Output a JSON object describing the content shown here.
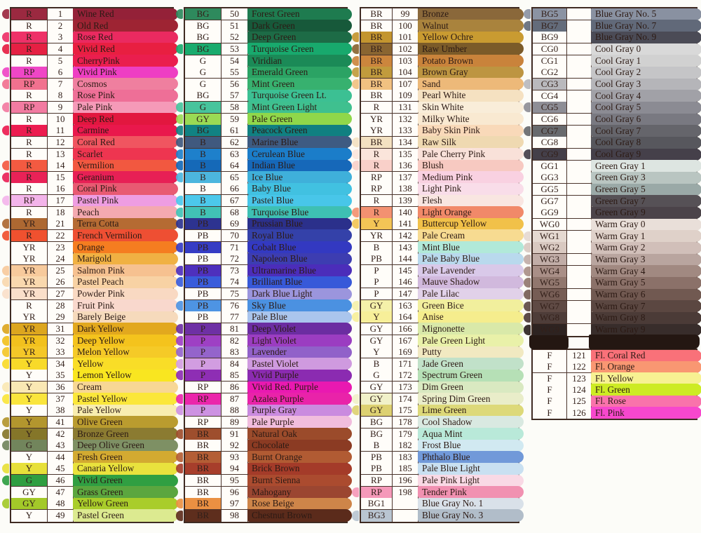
{
  "colors": {
    "page_bg": "#fcfcf8",
    "table_bg": "#fffdf9",
    "grid_border": "#4a342c",
    "outer_border": "#3f2b23",
    "text": "#2c1a14",
    "smudge": "#241712"
  },
  "row_format": [
    "code",
    "number",
    "name",
    "swatch_color",
    "code_cell_paint"
  ],
  "tables": [
    {
      "id": "t1",
      "rows": [
        [
          "R",
          "1",
          "Wine Red",
          "#942138",
          "#9b2940"
        ],
        [
          "R",
          "2",
          "Old Red",
          "#9e2433",
          null
        ],
        [
          "R",
          "3",
          "Rose Red",
          "#ea2a60",
          "#ee3168"
        ],
        [
          "R",
          "4",
          "Vivid Red",
          "#e81f41",
          "#e52043"
        ],
        [
          "R",
          "5",
          "CherryPink",
          "#ea1e4e",
          null
        ],
        [
          "RP",
          "6",
          "Vivid Pink",
          "#ee3ec3",
          "#ef46c6"
        ],
        [
          "RP",
          "7",
          "Cosmos",
          "#ef7f9f",
          "#f1718f"
        ],
        [
          "R",
          "8",
          "Rose Pink",
          "#ee6f97",
          null
        ],
        [
          "RP",
          "9",
          "Pale Pink",
          "#f59ab8",
          "#f27ba1"
        ],
        [
          "R",
          "10",
          "Deep Red",
          "#e2173f",
          null
        ],
        [
          "R",
          "11",
          "Carmine",
          "#e9184c",
          "#ec1c50"
        ],
        [
          "R",
          "12",
          "Coral Red",
          "#f05560",
          null
        ],
        [
          "R",
          "13",
          "Scarlet",
          "#ee3550",
          null
        ],
        [
          "R",
          "14",
          "Vermilion",
          "#f25840",
          "#f35a41"
        ],
        [
          "R",
          "15",
          "Geranium",
          "#e72055",
          "#e92257"
        ],
        [
          "R",
          "16",
          "Coral Pink",
          "#e85a72",
          null
        ],
        [
          "RP",
          "17",
          "Pastel Pink",
          "#ee9de2",
          "#f3b4ea"
        ],
        [
          "R",
          "18",
          "Peach",
          "#f4a9b0",
          null
        ],
        [
          "YR",
          "21",
          "Terra Cotta",
          "#b56b33",
          "#ad6832"
        ],
        [
          "R",
          "22",
          "French Vermilion",
          "#ee4f33",
          "#f0512f"
        ],
        [
          "YR",
          "23",
          "Orange",
          "#f57d20",
          null
        ],
        [
          "YR",
          "24",
          "Marigold",
          "#f0b143",
          null
        ],
        [
          "YR",
          "25",
          "Salmon Pink",
          "#f6c190",
          "#f7ca9c"
        ],
        [
          "YR",
          "26",
          "Pastel Peach",
          "#f8d2a4",
          "#f9d8ae"
        ],
        [
          "YR",
          "27",
          "Powder Pink",
          "#f9d9c2",
          "#fadfca"
        ],
        [
          "R",
          "28",
          "Fruit Pink",
          "#f9d8cd",
          null
        ],
        [
          "YR",
          "29",
          "Barely Beige",
          "#f6dabc",
          null
        ],
        [
          "YR",
          "31",
          "Dark Yellow",
          "#e2a81e",
          "#dca61f"
        ],
        [
          "YR",
          "32",
          "Deep Yellow",
          "#f4c31d",
          "#f2c11e"
        ],
        [
          "YR",
          "33",
          "Melon Yellow",
          "#f5ca27",
          "#f4c728"
        ],
        [
          "Y",
          "34",
          "Yellow",
          "#f9dd27",
          "#f8da29"
        ],
        [
          "Y",
          "35",
          "Lemon Yellow",
          "#f9e620",
          null
        ],
        [
          "Y",
          "36",
          "Cream",
          "#f7d795",
          "#fae8b4"
        ],
        [
          "Y",
          "37",
          "Pastel Yellow",
          "#fbe73a",
          "#fae53c"
        ],
        [
          "Y",
          "38",
          "Pale Yellow",
          "#f8edb0",
          null
        ],
        [
          "Y",
          "41",
          "Olive Green",
          "#ba9c2f",
          "#b3962e"
        ],
        [
          "Y",
          "42",
          "Bronze Green",
          "#8b7b31",
          "#857629"
        ],
        [
          "G",
          "43",
          "Deep Olive Green",
          "#7e9064",
          "#72855c"
        ],
        [
          "Y",
          "44",
          "Fresh Green",
          "#d3aa31",
          null
        ],
        [
          "Y",
          "45",
          "Canaria Yellow",
          "#e9e23d",
          "#e7e03a"
        ],
        [
          "G",
          "46",
          "Vivid Green",
          "#309f42",
          "#2f9e41"
        ],
        [
          "GY",
          "47",
          "Grass Green",
          "#5ba63f",
          null
        ],
        [
          "GY",
          "48",
          "Yellow Green",
          "#a9cd2a",
          "#a3c929"
        ],
        [
          "Y",
          "49",
          "Pastel Green",
          "#dcea90",
          null
        ]
      ]
    },
    {
      "id": "t2",
      "rows": [
        [
          "BG",
          "50",
          "Forest Green",
          "#1e7b4f",
          "#2e8a5d"
        ],
        [
          "BG",
          "51",
          "Dark Green",
          "#17593a",
          null
        ],
        [
          "BG",
          "52",
          "Deep Green",
          "#1d6b46",
          null
        ],
        [
          "BG",
          "53",
          "Turquoise Green",
          "#18a96d",
          "#19ab6e"
        ],
        [
          "G",
          "54",
          "Viridian",
          "#1b8a57",
          null
        ],
        [
          "G",
          "55",
          "Emerald Green",
          "#2ba364",
          null
        ],
        [
          "G",
          "56",
          "Mint Green",
          "#37b16f",
          null
        ],
        [
          "BG",
          "57",
          "Turquoise Green Lt.",
          "#3cc093",
          null
        ],
        [
          "G",
          "58",
          "Mint Green Light",
          "#3fc08f",
          "#47c49c"
        ],
        [
          "GY",
          "59",
          "Pale Green",
          "#90d74a",
          "#9ada54"
        ],
        [
          "BG",
          "61",
          "Peacock Green",
          "#108081",
          "#118283"
        ],
        [
          "B",
          "62",
          "Marine Blue",
          "#3e5b82",
          "#40597e"
        ],
        [
          "B",
          "63",
          "Cerulean Blue",
          "#1b7dc9",
          "#1e80cb"
        ],
        [
          "B",
          "64",
          "Indian Blue",
          "#1668b9",
          "#1569b8"
        ],
        [
          "B",
          "65",
          "Ice Blue",
          "#3fb0da",
          "#4cb6de"
        ],
        [
          "B",
          "66",
          "Baby Blue",
          "#41c1e1",
          null
        ],
        [
          "B",
          "67",
          "Pastel Blue",
          "#48c6e9",
          "#4cc8eb"
        ],
        [
          "B",
          "68",
          "Turquoise Blue",
          "#3ec0b3",
          "#41c2b5"
        ],
        [
          "PB",
          "69",
          "Prussian Blue",
          "#2b308b",
          "#2d3390"
        ],
        [
          "PB",
          "70",
          "Royal Blue",
          "#3441a9",
          null
        ],
        [
          "PB",
          "71",
          "Cobalt Blue",
          "#3339c1",
          "#363cc4"
        ],
        [
          "PB",
          "72",
          "Napoleon Blue",
          "#3d3db1",
          null
        ],
        [
          "PB",
          "73",
          "Ultramarine Blue",
          "#4b2dba",
          "#4e30bd"
        ],
        [
          "PB",
          "74",
          "Brilliant Blue",
          "#3759d9",
          "#3a5cdb"
        ],
        [
          "PB",
          "75",
          "Dark Blue Light",
          "#9b95dd",
          null
        ],
        [
          "PB",
          "76",
          "Sky Blue",
          "#4b91e1",
          "#4e94e3"
        ],
        [
          "PB",
          "77",
          "Pale Blue",
          "#aac5ed",
          null
        ],
        [
          "P",
          "81",
          "Deep Violet",
          "#6b2da1",
          "#6e30a4"
        ],
        [
          "P",
          "82",
          "Light Violet",
          "#9b3dc1",
          "#9e40c4"
        ],
        [
          "P",
          "83",
          "Lavender",
          "#9161c9",
          "#9464cb"
        ],
        [
          "P",
          "84",
          "Pastel Violet",
          "#cf9adf",
          "#d29de1"
        ],
        [
          "P",
          "85",
          "Vivid Purple",
          "#8b2bb1",
          "#8e2eb4"
        ],
        [
          "RP",
          "86",
          "Vivid Red. Purple",
          "#e919b1",
          null
        ],
        [
          "RP",
          "87",
          "Azalea Purple",
          "#e923a9",
          "#eb26ab"
        ],
        [
          "P",
          "88",
          "Purple Gray",
          "#ca8bdf",
          "#cd92e2"
        ],
        [
          "RP",
          "89",
          "Pale Purple",
          "#f1bddd",
          null
        ],
        [
          "BR",
          "91",
          "Natural Oak",
          "#9b4b2b",
          "#9e4e2d"
        ],
        [
          "BR",
          "92",
          "Chocolate",
          "#8b3b23",
          null
        ],
        [
          "BR",
          "93",
          "Burnt Orange",
          "#b15b33",
          "#b45e35"
        ],
        [
          "BR",
          "94",
          "Brick Brown",
          "#a43b29",
          "#a73e2b"
        ],
        [
          "BR",
          "95",
          "Burnt Sienna",
          "#ab4b2f",
          null
        ],
        [
          "BR",
          "96",
          "Mahogany",
          "#9b4631",
          null
        ],
        [
          "BR",
          "97",
          "Rose Beige",
          "#ce8549",
          "#ea9042"
        ],
        [
          "BR",
          "98",
          "Chestnut Brown",
          "#5b2b1b",
          "#5e2e1d"
        ]
      ]
    },
    {
      "id": "t3",
      "rows": [
        [
          "BR",
          "99",
          "Bronze",
          "#8a683a",
          null
        ],
        [
          "BR",
          "100",
          "Walnut",
          "#a9833d",
          null
        ],
        [
          "BR",
          "101",
          "Yellow Ochre",
          "#c99b31",
          "#c3952f"
        ],
        [
          "BR",
          "102",
          "Raw Umber",
          "#7b5b29",
          "#8a6531"
        ],
        [
          "BR",
          "103",
          "Potato Brown",
          "#c9833b",
          "#cc863d"
        ],
        [
          "BR",
          "104",
          "Brown Gray",
          "#bd9541",
          "#c19b3d"
        ],
        [
          "BR",
          "107",
          "Sand",
          "#edb979",
          "#f1c181"
        ],
        [
          "BR",
          "109",
          "Pearl White",
          "#f5e1c1",
          null
        ],
        [
          "R",
          "131",
          "Skin White",
          "#f9edd9",
          null
        ],
        [
          "YR",
          "132",
          "Milky White",
          "#f9e9d1",
          null
        ],
        [
          "YR",
          "133",
          "Baby Skin Pink",
          "#f9d9b9",
          null
        ],
        [
          "BR",
          "134",
          "Raw Silk",
          "#efd9b1",
          "#f3e1c1"
        ],
        [
          "R",
          "135",
          "Pale Cherry Pink",
          "#f9e1d9",
          "#fbe5db"
        ],
        [
          "R",
          "136",
          "Blush",
          "#f7c9c1",
          "#f9d0c9"
        ],
        [
          "RP",
          "137",
          "Medium Pink",
          "#f9d1e1",
          null
        ],
        [
          "RP",
          "138",
          "Light Pink",
          "#f9dde9",
          null
        ],
        [
          "R",
          "139",
          "Flesh",
          "#f9e6e1",
          null
        ],
        [
          "R",
          "140",
          "Light Orange",
          "#f18969",
          "#f39171"
        ],
        [
          "Y",
          "141",
          "Buttercup Yellow",
          "#f1c149",
          "#f3c556"
        ],
        [
          "YR",
          "142",
          "Pale Cream",
          "#f7db91",
          null
        ],
        [
          "B",
          "143",
          "Mint Blue",
          "#b1e9d9",
          null
        ],
        [
          "PB",
          "144",
          "Pale Baby Blue",
          "#b9d9ed",
          null
        ],
        [
          "P",
          "145",
          "Pale Lavender",
          "#d9c9e9",
          null
        ],
        [
          "P",
          "146",
          "Mauve Shadow",
          "#d1b9dd",
          null
        ],
        [
          "P",
          "147",
          "Pale Lilac",
          "#e1d1e9",
          null
        ],
        [
          "GY",
          "163",
          "Green Bice",
          "#f1ef9d",
          "#f5f1a9"
        ],
        [
          "Y",
          "164",
          "Anise",
          "#f5ed8d",
          "#f7ef99"
        ],
        [
          "GY",
          "166",
          "Mignonette",
          "#d9e9a9",
          null
        ],
        [
          "GY",
          "167",
          "Pale Green Light",
          "#e9f1a9",
          null
        ],
        [
          "Y",
          "169",
          "Putty",
          "#f1e9c1",
          null
        ],
        [
          "B",
          "171",
          "Jade Green",
          "#c1e1c9",
          null
        ],
        [
          "G",
          "172",
          "Spectrum Green",
          "#b6e0b6",
          null
        ],
        [
          "GY",
          "173",
          "Dim Green",
          "#d9e9c1",
          null
        ],
        [
          "GY",
          "174",
          "Spring Dim Green",
          "#e9edc9",
          "#f1f1c9"
        ],
        [
          "GY",
          "175",
          "Lime Green",
          "#ddd979",
          "#ddd171"
        ],
        [
          "BG",
          "178",
          "Cool Shadow",
          "#d9e9e1",
          null
        ],
        [
          "BG",
          "179",
          "Aqua Mint",
          "#b9e9d9",
          null
        ],
        [
          "B",
          "182",
          "Frost Blue",
          "#d1e9f1",
          null
        ],
        [
          "PB",
          "183",
          "Phthalo Blue",
          "#7199d9",
          null
        ],
        [
          "PB",
          "185",
          "Pale Blue Light",
          "#c9e0f1",
          null
        ],
        [
          "RP",
          "196",
          "Pale Pink Light",
          "#f9d9e5",
          null
        ],
        [
          "RP",
          "198",
          "Tender Pink",
          "#f191b1",
          "#f599b9"
        ],
        [
          "BG1",
          "",
          "Blue Gray No. 1",
          "#d9e1e9",
          null
        ],
        [
          "BG3",
          "",
          "Blue Gray No. 3",
          "#b1bdc9",
          "#b9c5d1"
        ]
      ]
    },
    {
      "id": "t4",
      "rows": [
        [
          "BG5",
          "",
          "Blue Gray No. 5",
          "#8991a1",
          "#8b93a3"
        ],
        [
          "BG7",
          "",
          "Blue Gray No. 7",
          "#616979",
          "#646c7b"
        ],
        [
          "BG9",
          "",
          "Blue Gray No. 9",
          "#4b4b56",
          null
        ],
        [
          "CG0",
          "",
          "Cool Gray 0",
          "#d9d9d9",
          null
        ],
        [
          "CG1",
          "",
          "Cool Gray 1",
          "#d1d1d1",
          null
        ],
        [
          "CG2",
          "",
          "Cool Gray 2",
          "#c5c5c7",
          null
        ],
        [
          "CG3",
          "",
          "Cool Gray 3",
          "#b5b5b9",
          "#b9b9bd"
        ],
        [
          "CG4",
          "",
          "Cool Gray 4",
          "#a1a1a7",
          null
        ],
        [
          "CG5",
          "",
          "Cool Gray 5",
          "#8b8b93",
          "#8e8e96"
        ],
        [
          "CG6",
          "",
          "Cool Gray 6",
          "#797981",
          null
        ],
        [
          "CG7",
          "",
          "Cool Gray 7",
          "#65656b",
          "#686a6e"
        ],
        [
          "CG8",
          "",
          "Cool Gray 8",
          "#57575d",
          null
        ],
        [
          "CG9",
          "",
          "Cool Gray 9",
          "#45404a",
          "#443f49"
        ],
        [
          "GG1",
          "",
          "Green Gray 1",
          "#dde5e1",
          null
        ],
        [
          "GG3",
          "",
          "Green Gray 3",
          "#b9c5c1",
          null
        ],
        [
          "GG5",
          "",
          "Green Gray 5",
          "#9aa9a7",
          null
        ],
        [
          "GG7",
          "",
          "Green Gray 7",
          "#565156",
          null
        ],
        [
          "GG9",
          "",
          "Green Gray 9",
          "#4b4349",
          null
        ],
        [
          "WG0",
          "",
          "Warm Gray 0",
          "#e9dfd9",
          null
        ],
        [
          "WG1",
          "",
          "Warm Gray 1",
          "#dfd1c9",
          "#e5d9d1"
        ],
        [
          "WG2",
          "",
          "Warm Gray 2",
          "#d1bfb9",
          "#d9c9c1"
        ],
        [
          "WG3",
          "",
          "Warm Gray 3",
          "#b9a59f",
          "#c1ada7"
        ],
        [
          "WG4",
          "",
          "Warm Gray 4",
          "#a18981",
          "#a98f87"
        ],
        [
          "WG5",
          "",
          "Warm Gray 5",
          "#8b7169",
          "#91776e"
        ],
        [
          "WG6",
          "",
          "Warm Gray 6",
          "#715951",
          "#765d55"
        ],
        [
          "WG7",
          "",
          "Warm Gray 7",
          "#5b4741",
          "#5f4a44"
        ],
        [
          "WG8",
          "",
          "Warm Gray 8",
          "#4b3b37",
          "#4e3d39"
        ],
        [
          "WG9",
          "",
          "Warm Gray 9",
          "#382d2b",
          "#2d2321"
        ]
      ]
    },
    {
      "id": "t5",
      "rows": [
        [
          "F",
          "121",
          "Fl. Coral Red",
          "#f97179",
          null
        ],
        [
          "F",
          "122",
          "Fl. Orange",
          "#f99772",
          null
        ],
        [
          "F",
          "123",
          "Fl. Yellow",
          "#f7f192",
          null
        ],
        [
          "F",
          "124",
          "Fl. Green",
          "#cdeb24",
          null
        ],
        [
          "F",
          "125",
          "Fl. Rose",
          "#f973ab",
          null
        ],
        [
          "F",
          "126",
          "Fl. Pink",
          "#f747cd",
          null
        ]
      ]
    }
  ]
}
